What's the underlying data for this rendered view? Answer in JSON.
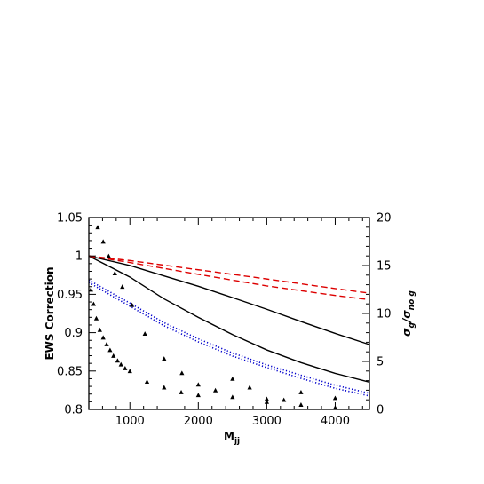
{
  "chart_data": {
    "type": "line",
    "title": "",
    "xlabel_main": "M",
    "xlabel_sub": "jj",
    "ylabel": "EWS Correction",
    "ylabel_right_main": "σ",
    "ylabel_right_sub1": "g",
    "ylabel_right_sep": "/σ",
    "ylabel_right_sub2": "no g",
    "xlim": [
      400,
      4500
    ],
    "ylim": [
      0.8,
      1.05
    ],
    "ylim_right": [
      0,
      20
    ],
    "xticks_major": [
      1000,
      2000,
      3000,
      4000
    ],
    "xticks_minor_step": 200,
    "yticks_major": [
      0.8,
      0.85,
      0.9,
      0.95,
      1,
      1.05
    ],
    "yticks_major_labels": [
      "0.8",
      "0.85",
      "0.9",
      "0.95",
      "1",
      "1.05"
    ],
    "yticks_minor_step": 0.01,
    "yticks_right_major": [
      0,
      5,
      10,
      15,
      20
    ],
    "yticks_right_minor_step": 1,
    "grid": false,
    "legend": "none",
    "colors": {
      "red": "#dd0000",
      "blue": "#0000cc",
      "black": "#000000"
    },
    "series": [
      {
        "axis": "left",
        "color": "#000000",
        "style": "solid",
        "x": [
          400,
          1000,
          1500,
          2000,
          2500,
          3000,
          3500,
          4000,
          4500
        ],
        "y": [
          1.0,
          0.9876,
          0.974,
          0.9605,
          0.9457,
          0.9305,
          0.9145,
          0.899,
          0.8845
        ]
      },
      {
        "axis": "left",
        "color": "#000000",
        "style": "solid",
        "x": [
          400,
          1000,
          1500,
          2000,
          2500,
          3000,
          3500,
          4000,
          4500
        ],
        "y": [
          1.0,
          0.9725,
          0.944,
          0.92,
          0.8975,
          0.8775,
          0.861,
          0.847,
          0.8355
        ]
      },
      {
        "axis": "left",
        "color": "#dd0000",
        "style": "dashed",
        "x": [
          400,
          1000,
          2000,
          3000,
          4000,
          4500
        ],
        "y": [
          1.0,
          0.994,
          0.982,
          0.97,
          0.9575,
          0.9515
        ]
      },
      {
        "axis": "left",
        "color": "#dd0000",
        "style": "dashed",
        "x": [
          400,
          1000,
          2000,
          3000,
          4000,
          4500
        ],
        "y": [
          1.0,
          0.9915,
          0.976,
          0.961,
          0.9485,
          0.943
        ]
      },
      {
        "axis": "left",
        "color": "#0000cc",
        "style": "dotted",
        "x": [
          400,
          1000,
          1500,
          2000,
          2500,
          3000,
          3500,
          4000,
          4500
        ],
        "y": [
          0.9685,
          0.9385,
          0.913,
          0.892,
          0.8735,
          0.858,
          0.8445,
          0.8315,
          0.821
        ]
      },
      {
        "axis": "left",
        "color": "#0000cc",
        "style": "dotted",
        "x": [
          400,
          1000,
          1500,
          2000,
          2500,
          3000,
          3500,
          4000,
          4500
        ],
        "y": [
          0.9655,
          0.9345,
          0.909,
          0.888,
          0.8695,
          0.8545,
          0.8405,
          0.8275,
          0.8175
        ]
      },
      {
        "axis": "right",
        "color": "#000000",
        "style": "triangles",
        "x": [
          430,
          470,
          510,
          560,
          610,
          660,
          710,
          760,
          820,
          870,
          930,
          1000
        ],
        "y": [
          12.5,
          11.0,
          9.5,
          8.3,
          7.5,
          6.8,
          6.2,
          5.6,
          5.1,
          4.7,
          4.3,
          4.0
        ]
      },
      {
        "axis": "right",
        "color": "#000000",
        "style": "triangles",
        "x": [
          530,
          610,
          690,
          780,
          890,
          1030,
          1220,
          1500,
          1760,
          2000
        ],
        "y": [
          19.0,
          17.5,
          16.0,
          14.2,
          12.8,
          10.9,
          7.9,
          5.3,
          3.8,
          2.6
        ]
      },
      {
        "axis": "right",
        "color": "#000000",
        "style": "triangles",
        "x": [
          1250,
          1500,
          1750,
          2000,
          2500,
          3000,
          3500,
          4000
        ],
        "y": [
          2.9,
          2.3,
          1.8,
          1.5,
          1.3,
          0.8,
          0.5,
          0.2
        ]
      },
      {
        "axis": "right",
        "color": "#000000",
        "style": "triangles",
        "x": [
          2250,
          2500,
          2750,
          3000,
          3250,
          3500,
          4000
        ],
        "y": [
          2.0,
          3.2,
          2.3,
          1.1,
          1.0,
          1.8,
          1.2
        ]
      }
    ]
  }
}
